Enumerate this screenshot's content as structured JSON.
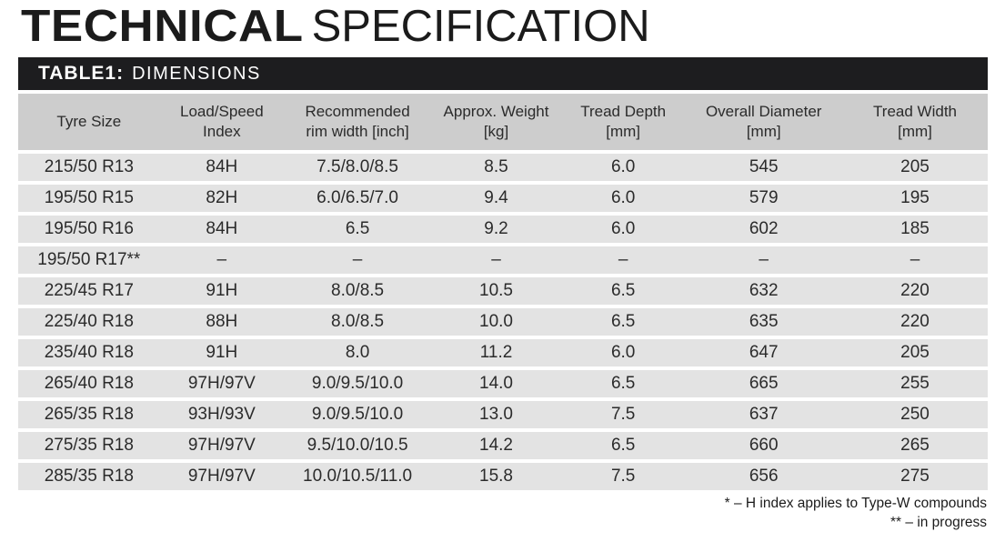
{
  "title": {
    "heavy": "TECHNICAL",
    "light": "SPECIFICATION"
  },
  "banner": {
    "label": "TABLE1:",
    "title": "DIMENSIONS"
  },
  "table": {
    "headers": [
      "Tyre Size",
      "Load/Speed\nIndex",
      "Recommended\nrim width [inch]",
      "Approx. Weight\n[kg]",
      "Tread Depth\n[mm]",
      "Overall Diameter\n[mm]",
      "Tread Width\n[mm]"
    ],
    "rows": [
      [
        "215/50 R13",
        "84H",
        "7.5/8.0/8.5",
        "8.5",
        "6.0",
        "545",
        "205"
      ],
      [
        "195/50 R15",
        "82H",
        "6.0/6.5/7.0",
        "9.4",
        "6.0",
        "579",
        "195"
      ],
      [
        "195/50 R16",
        "84H",
        "6.5",
        "9.2",
        "6.0",
        "602",
        "185"
      ],
      [
        "195/50 R17**",
        "–",
        "–",
        "–",
        "–",
        "–",
        "–"
      ],
      [
        "225/45 R17",
        "91H",
        "8.0/8.5",
        "10.5",
        "6.5",
        "632",
        "220"
      ],
      [
        "225/40 R18",
        "88H",
        "8.0/8.5",
        "10.0",
        "6.5",
        "635",
        "220"
      ],
      [
        "235/40 R18",
        "91H",
        "8.0",
        "11.2",
        "6.0",
        "647",
        "205"
      ],
      [
        "265/40 R18",
        "97H/97V",
        "9.0/9.5/10.0",
        "14.0",
        "6.5",
        "665",
        "255"
      ],
      [
        "265/35 R18",
        "93H/93V",
        "9.0/9.5/10.0",
        "13.0",
        "7.5",
        "637",
        "250"
      ],
      [
        "275/35 R18",
        "97H/97V",
        "9.5/10.0/10.5",
        "14.2",
        "6.5",
        "660",
        "265"
      ],
      [
        "285/35 R18",
        "97H/97V",
        "10.0/10.5/11.0",
        "15.8",
        "7.5",
        "656",
        "275"
      ]
    ]
  },
  "footnotes": [
    "* – H index applies to Type-W compounds",
    "** – in progress"
  ],
  "colors": {
    "banner_bg": "#1d1d1f",
    "header_row_bg": "#cdcdcd",
    "data_row_bg": "#e3e3e3",
    "text": "#2b2b2b",
    "title_text": "#1b1b1b"
  }
}
